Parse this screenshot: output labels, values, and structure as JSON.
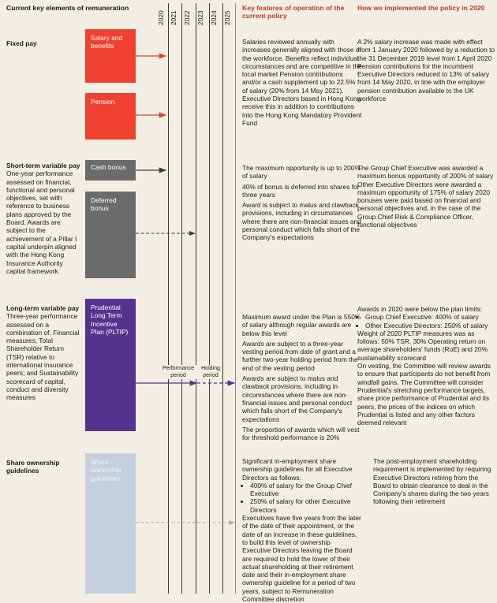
{
  "header": {
    "elements_title": "Current key elements of remuneration",
    "years": [
      "2020",
      "2021",
      "2022",
      "2023",
      "2024",
      "2025"
    ],
    "features_title": "Key features of operation of the current policy",
    "implementation_title": "How we implemented the policy in 2020"
  },
  "colors": {
    "accent_red": "#c0392b",
    "fixed_pay": "#f0402f",
    "variable_short": "#6b6b6b",
    "pltip": "#57338f",
    "share_ownership": "#c4d0de"
  },
  "fixed": {
    "title": "Fixed pay",
    "box_salary": "Salary and benefits",
    "box_pension": "Pension",
    "features": [
      "Salaries reviewed annually with increases generally aligned with those of the workforce. Benefits reflect individual circumstances and are competitive in the local market Pension contributions and/or a cash supplement up to 22.5% of salary (20% from 14 May 2021). Executive Directors based in Hong Kong receive this in addition to contributions into the Hong Kong Mandatory Provident Fund"
    ],
    "implementation": "A 2% salary increase was made with effect from 1 January 2020 followed by a reduction to the 31 December 2019 level from 1 April 2020 Pension contributions for the incumbent Executive Directors reduced to 13% of salary from 14 May 2020, in line with the employer pension contribution available to the UK workforce"
  },
  "short": {
    "title": "Short-term variable pay",
    "description": "One-year performance assessed on financial, functional and personal objectives, set with reference to business plans approved by the Board. Awards are subject to the achievement of a Pillar I capital underpin aligned with the Hong Kong Insurance Authority capital framework",
    "box_cash": "Cash bonus",
    "box_deferred": "Deferred bonus",
    "features": [
      "The maximum opportunity is up to 200% of salary",
      "40% of bonus is deferred into shares for three years",
      "Award is subject to malus and clawback provisions, including in circumstances where there are non-financial issues and personal conduct which falls short of the Company's expectations"
    ],
    "implementation": "The Group Chief Executive was awarded a maximum bonus opportunity of 200% of salary Other Executive Directors were awarded a maximum opportunity of 175% of salary 2020 bonuses were paid based on financial and personal objectives and, in the case of the Group Chief Risk & Compliance Officer, functional objectives"
  },
  "long": {
    "title": "Long-term variable pay",
    "description": "Three-year performance assessed on a combination of: Financial measures; Total Shareholder Return (TSR) relative to international insurance peers; and Sustainability scorecard of capital, conduct and diversity measures",
    "box": "Prudential Long Term Incentive Plan (PLTIP)",
    "performance_label": "Performance period",
    "holding_label": "Holding period",
    "features": [
      "Maximum award under the Plan is 550% of salary although regular awards are below this level",
      "Awards are subject to a three-year vesting period from date of grant and a further two-year holding period from the end of the vesting period",
      "Awards are subject to malus and clawback provisions, including in circumstances where there are non-financial issues and personal conduct which falls short of the Company's expectations",
      "The proportion of awards which will vest for threshold performance is 20%"
    ],
    "impl_intro": "Awards in 2020 were below the plan limits:",
    "impl_bullets": [
      "Group Chief Executive: 400% of salary",
      "Other Executive Directors: 250% of salary"
    ],
    "impl_rest": [
      "Weight of 2020 PLTIP measures was as follows: 50% TSR, 30% Operating return on average shareholders' funds (RoE) and 20% sustainability scorecard",
      "On vesting, the Committee will review awards to ensure that participants do not benefit from windfall gains. The Committee will consider Prudential's stretching performance targets, share price performance of Prudential and its peers, the prices of the indices on which Prudential is listed and any other factors deemed relevant"
    ]
  },
  "share": {
    "title": "Share ownership guidelines",
    "box": "Share ownership guidelines",
    "features_intro": "Significant in-employment share ownership guidelines for all Executive Directors as follows:",
    "features_bullets": [
      "400% of salary for the Group Chief Executive",
      "250% of salary for other Executive Directors"
    ],
    "features_rest": [
      "Executives have five years from the later of the date of their appointment, or the date of an increase in these guidelines, to build this level of ownership",
      "Executive Directors leaving the Board are required to hold the lower of their actual shareholding at their retirement date and their in-employment share ownership guideline for a period of two years, subject to Remuneration Committee discretion"
    ],
    "implementation": "The post-employment shareholding requirement is implemented by requiring Executive Directors retiring from the Board to obtain clearance to deal in the Company's shares during the two years following their retirement"
  }
}
